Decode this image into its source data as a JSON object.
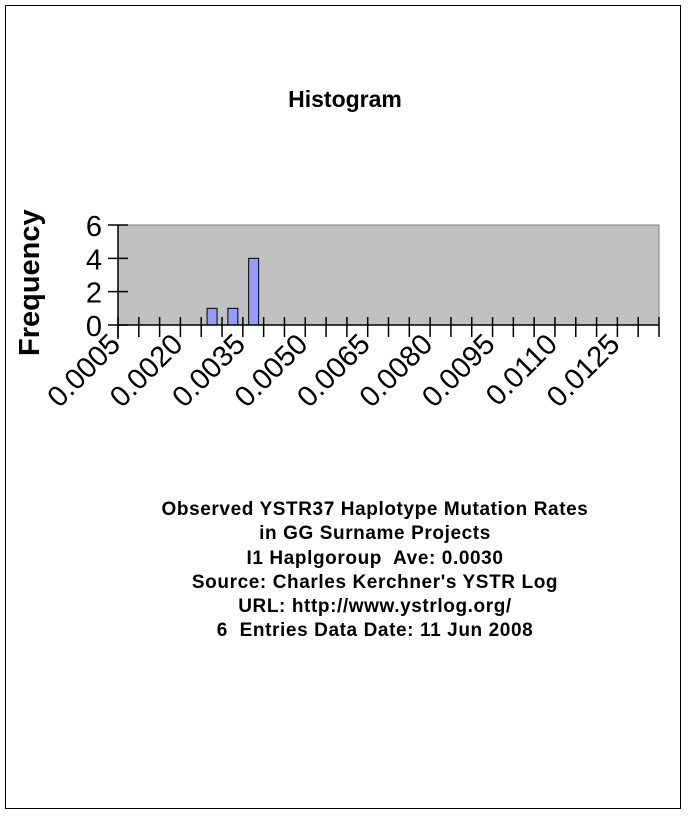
{
  "chart_data": {
    "type": "bar",
    "title": "Histogram",
    "xlabel": "",
    "ylabel": "Frequency",
    "ylim": [
      0,
      6
    ],
    "yticks": [
      0,
      2,
      4,
      6
    ],
    "bin_width": 0.0005,
    "bin_start": 0.0005,
    "num_bins": 26,
    "xtick_labels": [
      "0.0005",
      "0.0020",
      "0.0035",
      "0.0050",
      "0.0065",
      "0.0080",
      "0.0095",
      "0.0110",
      "0.0125"
    ],
    "xtick_label_every": 3,
    "categories": [
      "0.0005",
      "0.0010",
      "0.0015",
      "0.0020",
      "0.0025",
      "0.0030",
      "0.0035",
      "0.0040",
      "0.0045",
      "0.0050",
      "0.0055",
      "0.0060",
      "0.0065",
      "0.0070",
      "0.0075",
      "0.0080",
      "0.0085",
      "0.0090",
      "0.0095",
      "0.0100",
      "0.0105",
      "0.0110",
      "0.0115",
      "0.0120",
      "0.0125",
      "0.0130"
    ],
    "values": [
      0,
      0,
      0,
      0,
      1,
      1,
      4,
      0,
      0,
      0,
      0,
      0,
      0,
      0,
      0,
      0,
      0,
      0,
      0,
      0,
      0,
      0,
      0,
      0,
      0,
      0
    ],
    "grid": false,
    "legend": "none",
    "colors": {
      "plot_background": "#c0c0c0",
      "bar_fill": "#9999ff",
      "bar_edge": "#000000"
    }
  },
  "caption": {
    "lines": [
      "Observed YSTR37 Haplotype Mutation Rates",
      "in GG Surname Projects",
      "I1 Haplgoroup  Ave: 0.0030",
      "Source: Charles Kerchner's YSTR Log",
      "URL: http://www.ystrlog.org/",
      "6  Entries Data Date: 11 Jun 2008"
    ]
  }
}
